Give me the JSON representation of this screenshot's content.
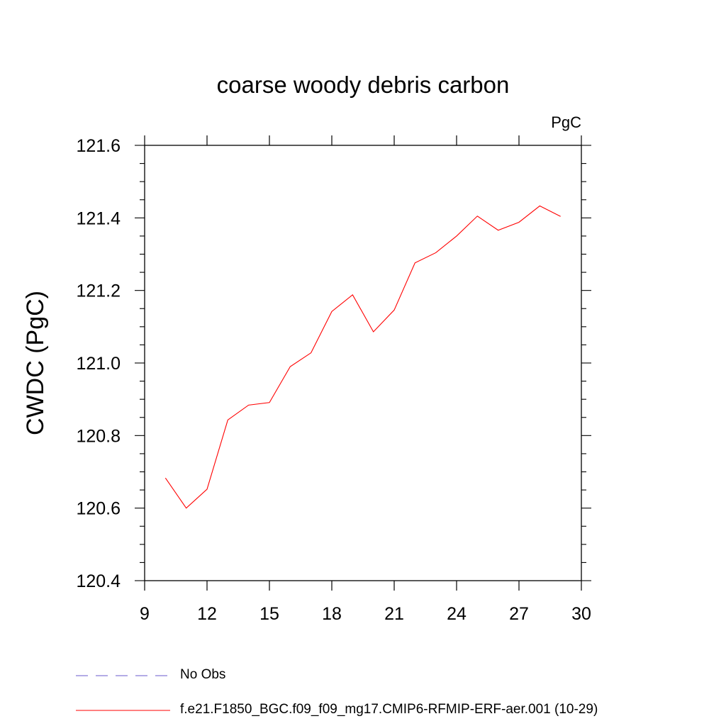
{
  "chart_data": {
    "type": "line",
    "title": "coarse woody debris carbon",
    "units_label": "PgC",
    "xlabel": "",
    "ylabel": "CWDC  (PgC)",
    "xlim": [
      9,
      30
    ],
    "ylim": [
      120.4,
      121.6
    ],
    "x_ticks": [
      9,
      12,
      15,
      18,
      21,
      24,
      27,
      30
    ],
    "y_ticks": [
      120.4,
      120.6,
      120.8,
      121.0,
      121.2,
      121.4,
      121.6
    ],
    "y_tick_labels": [
      "120.4",
      "120.6",
      "120.8",
      "121.0",
      "121.2",
      "121.4",
      "121.6"
    ],
    "grid": false,
    "legend_position": "bottom",
    "series": [
      {
        "name": "f.e21.F1850_BGC.f09_f09_mg17.CMIP6-RFMIP-ERF-aer.001 (10-29)",
        "color": "#ff0000",
        "style": "solid",
        "x": [
          10,
          11,
          12,
          13,
          14,
          15,
          16,
          17,
          18,
          19,
          20,
          21,
          22,
          23,
          24,
          25,
          26,
          27,
          28,
          29
        ],
        "values": [
          120.683,
          120.6,
          120.652,
          120.843,
          120.884,
          120.891,
          120.99,
          121.028,
          121.142,
          121.188,
          121.086,
          121.146,
          121.276,
          121.304,
          121.35,
          121.405,
          121.366,
          121.388,
          121.433,
          121.404
        ]
      }
    ],
    "legend": [
      {
        "label": "No Obs",
        "color": "#6a5acd",
        "style": "dashed"
      },
      {
        "label": "f.e21.F1850_BGC.f09_f09_mg17.CMIP6-RFMIP-ERF-aer.001 (10-29)",
        "color": "#ff0000",
        "style": "solid"
      }
    ]
  }
}
